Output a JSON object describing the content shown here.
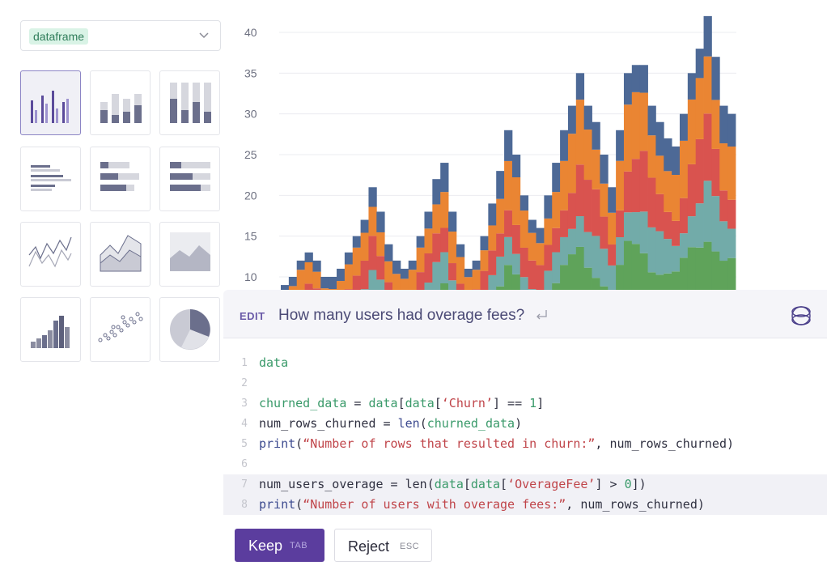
{
  "sidebar": {
    "dataset_select": {
      "value": "dataframe",
      "chevron_icon": "chevron-down-icon"
    },
    "chart_types": [
      {
        "name": "grouped-bar-chart-icon",
        "selected": true
      },
      {
        "name": "stacked-bar-chart-icon",
        "selected": false
      },
      {
        "name": "stacked-100-bar-chart-icon",
        "selected": false
      },
      {
        "name": "horizontal-bar-chart-icon",
        "selected": false
      },
      {
        "name": "horizontal-stacked-bar-chart-icon",
        "selected": false
      },
      {
        "name": "horizontal-100-bar-chart-icon",
        "selected": false
      },
      {
        "name": "line-chart-icon",
        "selected": false
      },
      {
        "name": "area-chart-icon",
        "selected": false
      },
      {
        "name": "stacked-area-chart-icon",
        "selected": false
      },
      {
        "name": "histogram-chart-icon",
        "selected": false
      },
      {
        "name": "scatter-chart-icon",
        "selected": false
      },
      {
        "name": "pie-chart-icon",
        "selected": false
      }
    ]
  },
  "chart_data": {
    "type": "bar",
    "title": "",
    "xlabel": "",
    "ylabel": "",
    "ylim": [
      9,
      42
    ],
    "yticks": [
      "10",
      "15",
      "20",
      "25",
      "30",
      "35",
      "40"
    ],
    "grid": true,
    "stacked": true,
    "colors": [
      "#e8c84e",
      "#5fa35a",
      "#72aba9",
      "#d9534f",
      "#ea8533",
      "#4d6996"
    ],
    "totals": [
      9,
      10,
      12,
      13,
      12,
      10,
      10,
      11,
      13,
      15,
      17,
      21,
      18,
      14,
      12,
      11,
      12,
      15,
      18,
      22,
      24,
      18,
      14,
      11,
      12,
      15,
      19,
      23,
      28,
      25,
      20,
      17,
      16,
      20,
      24,
      28,
      31,
      35,
      31,
      29,
      25,
      21,
      28,
      35,
      36,
      36,
      31,
      29,
      27,
      26,
      30,
      35,
      38,
      42,
      37,
      31,
      30
    ],
    "segment_shares": [
      0.18,
      0.2,
      0.14,
      0.16,
      0.2,
      0.12
    ]
  },
  "assistant": {
    "mode": "EDIT",
    "prompt": "How many users had overage fees?",
    "enter_icon": "enter-key-icon",
    "logo_icon": "orbit-logo-icon",
    "code_lines": [
      {
        "n": "1",
        "hl": false,
        "tokens": [
          {
            "t": "data",
            "c": "c-green"
          }
        ]
      },
      {
        "n": "2",
        "hl": false,
        "tokens": []
      },
      {
        "n": "3",
        "hl": false,
        "tokens": [
          {
            "t": "churned_data",
            "c": "c-green"
          },
          {
            "t": " = ",
            "c": "c-text"
          },
          {
            "t": "data",
            "c": "c-green"
          },
          {
            "t": "[",
            "c": "c-text"
          },
          {
            "t": "data",
            "c": "c-green"
          },
          {
            "t": "[",
            "c": "c-text"
          },
          {
            "t": "‘Churn’",
            "c": "c-red"
          },
          {
            "t": "] == ",
            "c": "c-text"
          },
          {
            "t": "1",
            "c": "c-green"
          },
          {
            "t": "]",
            "c": "c-text"
          }
        ]
      },
      {
        "n": "4",
        "hl": false,
        "tokens": [
          {
            "t": "num_rows_churned = ",
            "c": "c-text"
          },
          {
            "t": "len",
            "c": "c-blue"
          },
          {
            "t": "(",
            "c": "c-text"
          },
          {
            "t": "churned_data",
            "c": "c-green"
          },
          {
            "t": ")",
            "c": "c-text"
          }
        ]
      },
      {
        "n": "5",
        "hl": false,
        "tokens": [
          {
            "t": "print",
            "c": "c-blue"
          },
          {
            "t": "(",
            "c": "c-text"
          },
          {
            "t": "“Number of rows that resulted in churn:”",
            "c": "c-red"
          },
          {
            "t": ", num_rows_churned)",
            "c": "c-text"
          }
        ]
      },
      {
        "n": "6",
        "hl": false,
        "tokens": []
      },
      {
        "n": "7",
        "hl": true,
        "tokens": [
          {
            "t": "num_users_overage = ",
            "c": "c-text"
          },
          {
            "t": "len",
            "c": "c-text"
          },
          {
            "t": "(",
            "c": "c-text"
          },
          {
            "t": "data",
            "c": "c-green"
          },
          {
            "t": "[",
            "c": "c-text"
          },
          {
            "t": "data",
            "c": "c-green"
          },
          {
            "t": "[",
            "c": "c-text"
          },
          {
            "t": "‘OverageFee’",
            "c": "c-red"
          },
          {
            "t": "] > ",
            "c": "c-text"
          },
          {
            "t": "0",
            "c": "c-green"
          },
          {
            "t": "])",
            "c": "c-text"
          }
        ]
      },
      {
        "n": "8",
        "hl": true,
        "tokens": [
          {
            "t": "print",
            "c": "c-blue"
          },
          {
            "t": "(",
            "c": "c-text"
          },
          {
            "t": "“Number of users with overage fees:”",
            "c": "c-red"
          },
          {
            "t": ", num_rows_churned)",
            "c": "c-text"
          }
        ]
      }
    ]
  },
  "actions": {
    "keep_label": "Keep",
    "keep_key": "TAB",
    "reject_label": "Reject",
    "reject_key": "ESC"
  }
}
